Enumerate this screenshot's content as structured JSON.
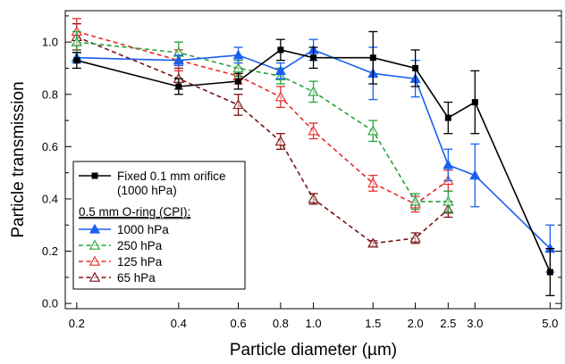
{
  "chart_data": {
    "type": "line",
    "xlabel": "Particle diameter (µm)",
    "ylabel": "Particle transmission",
    "xscale": "log",
    "xlim": [
      0.185,
      5.4
    ],
    "ylim": [
      -0.02,
      1.12
    ],
    "grid": false,
    "legend_position": "bottom-left",
    "x_ticks": [
      0.2,
      0.4,
      0.6,
      0.8,
      1.0,
      1.5,
      2.0,
      2.5,
      3.0,
      5.0
    ],
    "x_tick_labels": [
      "0.2",
      "0.4",
      "0.6",
      "0.8",
      "1.0",
      "1.5",
      "2.0",
      "2.5",
      "3.0",
      "5.0"
    ],
    "y_ticks": [
      0.0,
      0.2,
      0.4,
      0.6,
      0.8,
      1.0
    ],
    "y_tick_labels": [
      "0.0",
      "0.2",
      "0.4",
      "0.6",
      "0.8",
      "1.0"
    ],
    "legend_group_header": "0.5 mm O-ring (CPI):",
    "series": [
      {
        "name": "Fixed 0.1 mm orifice",
        "name_line2": "(1000 hPa)",
        "color": "#000000",
        "dash": "solid",
        "marker": "square",
        "x": [
          0.2,
          0.4,
          0.6,
          0.8,
          1.0,
          1.5,
          2.0,
          2.5,
          3.0,
          5.0
        ],
        "y": [
          0.93,
          0.83,
          0.85,
          0.97,
          0.94,
          0.94,
          0.9,
          0.71,
          0.77,
          0.12
        ],
        "err": [
          0.03,
          0.03,
          0.03,
          0.04,
          0.04,
          0.1,
          0.07,
          0.06,
          0.12,
          0.09
        ]
      },
      {
        "name": "1000 hPa",
        "color": "#1a5ff0",
        "dash": "solid",
        "marker": "triangle-filled",
        "x": [
          0.2,
          0.4,
          0.6,
          0.8,
          1.0,
          1.5,
          2.0,
          2.5,
          3.0,
          5.0
        ],
        "y": [
          0.94,
          0.93,
          0.95,
          0.89,
          0.97,
          0.88,
          0.86,
          0.53,
          0.49,
          0.21
        ],
        "err": [
          0.02,
          0.02,
          0.03,
          0.03,
          0.04,
          0.1,
          0.07,
          0.06,
          0.12,
          0.09
        ]
      },
      {
        "name": "250 hPa",
        "color": "#22a33a",
        "dash": "dashed",
        "marker": "triangle-open",
        "x": [
          0.2,
          0.4,
          0.6,
          0.8,
          1.0,
          1.5,
          2.0,
          2.5
        ],
        "y": [
          1.0,
          0.96,
          0.9,
          0.87,
          0.81,
          0.66,
          0.39,
          0.39
        ],
        "err": [
          0.04,
          0.04,
          0.03,
          0.03,
          0.04,
          0.04,
          0.03,
          0.04
        ]
      },
      {
        "name": "125 hPa",
        "color": "#e82a2a",
        "dash": "dashed",
        "marker": "triangle-open",
        "x": [
          0.2,
          0.4,
          0.6,
          0.8,
          1.0,
          1.5,
          2.0,
          2.5
        ],
        "y": [
          1.04,
          0.93,
          0.87,
          0.79,
          0.66,
          0.46,
          0.38,
          0.47
        ],
        "err": [
          0.05,
          0.04,
          0.03,
          0.04,
          0.03,
          0.03,
          0.03,
          0.04
        ]
      },
      {
        "name": "65 hPa",
        "color": "#7a1212",
        "dash": "dashed",
        "marker": "triangle-open",
        "x": [
          0.2,
          0.4,
          0.6,
          0.8,
          1.0,
          1.5,
          2.0,
          2.5
        ],
        "y": [
          1.02,
          0.86,
          0.76,
          0.62,
          0.4,
          0.23,
          0.25,
          0.36
        ],
        "err": [
          0.05,
          0.04,
          0.04,
          0.03,
          0.02,
          0.01,
          0.02,
          0.03
        ]
      }
    ]
  }
}
